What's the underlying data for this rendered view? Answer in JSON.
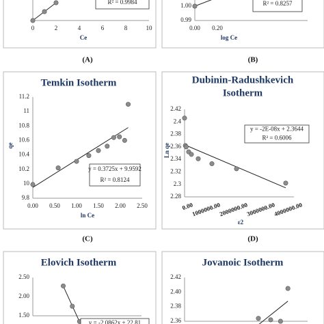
{
  "chart_data": [
    {
      "type": "scatter",
      "x_label": "Ce",
      "panel_label": "(A)",
      "annotations": [
        "R² = 0.9984"
      ],
      "x": [
        0,
        1,
        2
      ],
      "values": [
        0.0,
        0.1,
        0.2
      ],
      "xlim": [
        0,
        10
      ],
      "ylim": [
        0,
        0.3
      ],
      "xticks": [
        0,
        2,
        4,
        6,
        8,
        10
      ]
    },
    {
      "type": "scatter",
      "x_label": "log Ce",
      "panel_label": "(B)",
      "annotations": [
        "R² = 0.8257"
      ],
      "x": [
        0,
        0.2
      ],
      "values": [
        1.0,
        1.006
      ],
      "xlim": [
        0,
        1
      ],
      "ylim": [
        0.99,
        1.01
      ],
      "xticks": [
        {
          "value": 0,
          "label": "0.00"
        },
        {
          "value": 0.2,
          "label": "0.20"
        }
      ],
      "yticks": [
        {
          "value": 0.99,
          "label": "0.99"
        },
        {
          "value": 1.0,
          "label": "1.00"
        }
      ]
    },
    {
      "type": "scatter",
      "title": "Temkin Isotherm",
      "x_label": "ln Ce",
      "y_label": "qe",
      "panel_label": "(C)",
      "annotations": [
        "y = 0.3725x + 9.9592",
        "R² = 0.8124"
      ],
      "x": [
        0,
        0.58,
        1.0,
        1.28,
        1.5,
        1.7,
        1.85,
        1.98,
        2.1,
        2.18
      ],
      "values": [
        9.99,
        10.22,
        10.31,
        10.39,
        10.46,
        10.52,
        10.64,
        10.65,
        10.6,
        11.1
      ],
      "xlim": [
        0,
        2.5
      ],
      "ylim": [
        9.8,
        11.2
      ],
      "xticks": [
        {
          "value": 0,
          "label": "0.00"
        },
        {
          "value": 0.5,
          "label": "0.50"
        },
        {
          "value": 1,
          "label": "1.00"
        },
        {
          "value": 1.5,
          "label": "1.50"
        },
        {
          "value": 2,
          "label": "2.00"
        },
        {
          "value": 2.5,
          "label": "2.50"
        }
      ],
      "yticks": [
        9.8,
        10,
        10.2,
        10.4,
        10.6,
        10.8,
        11,
        11.2
      ]
    },
    {
      "type": "scatter",
      "title": [
        "Dubinin-Radushkevich",
        "Isotherm"
      ],
      "x_label": "ε2",
      "y_label": "Ln qe",
      "panel_label": "(D)",
      "annotations": [
        "y = -2E-08x + 2.3644",
        "R² = 0.6006"
      ],
      "x": [
        0,
        30000,
        60000,
        150000,
        250000,
        500000,
        1000000,
        1900000,
        3700000
      ],
      "values": [
        2.406,
        2.362,
        2.36,
        2.352,
        2.348,
        2.341,
        2.333,
        2.325,
        2.302
      ],
      "xlim": [
        0,
        4000000
      ],
      "ylim": [
        2.28,
        2.42
      ],
      "xticks": [
        {
          "value": 0,
          "label": "0.00"
        },
        {
          "value": 1000000,
          "label": "1000000.00"
        },
        {
          "value": 2000000,
          "label": "2000000.00"
        },
        {
          "value": 3000000,
          "label": "3000000.00"
        },
        {
          "value": 4000000,
          "label": "4000000.00"
        }
      ],
      "yticks": [
        2.28,
        2.3,
        2.32,
        2.34,
        2.36,
        2.38,
        2.4,
        2.42
      ]
    },
    {
      "type": "scatter",
      "title": "Elovich Isotherm",
      "annotations": [
        "y = -2.0862x + 22.81"
      ],
      "x": [
        9.84,
        10.09,
        10.29
      ],
      "values": [
        2.28,
        1.75,
        1.35
      ],
      "xlim": [
        9,
        12
      ],
      "ylim": [
        1.5,
        2.5
      ],
      "yticks": [
        {
          "value": 1.5,
          "label": "1.50"
        },
        {
          "value": 2,
          "label": "2.00"
        },
        {
          "value": 2.5,
          "label": "2.50"
        }
      ]
    },
    {
      "type": "scatter",
      "title": "Jovanoic Isotherm",
      "x": [
        0.6,
        0.7,
        0.78,
        0.84
      ],
      "values": [
        2.364,
        2.362,
        2.36,
        2.405
      ],
      "xlim": [
        0,
        1
      ],
      "ylim": [
        2.36,
        2.42
      ],
      "yticks": [
        {
          "value": 2.36,
          "label": "2.36"
        },
        {
          "value": 2.38,
          "label": "2.38"
        },
        {
          "value": 2.4,
          "label": "2.40"
        },
        {
          "value": 2.42,
          "label": "2.42"
        }
      ]
    }
  ]
}
